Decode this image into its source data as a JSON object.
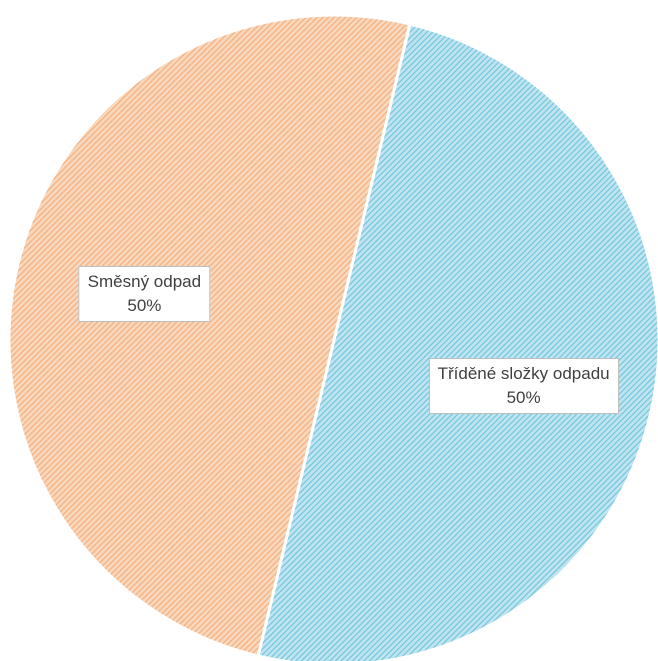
{
  "chart_data": {
    "type": "pie",
    "categories": [
      "Tříděné složky odpadu",
      "Směsný odpad"
    ],
    "values": [
      50,
      50
    ],
    "value_labels": [
      "50%",
      "50%"
    ],
    "colors": [
      "#6cc4dc",
      "#f3ad78"
    ],
    "legend": false,
    "title": ""
  }
}
